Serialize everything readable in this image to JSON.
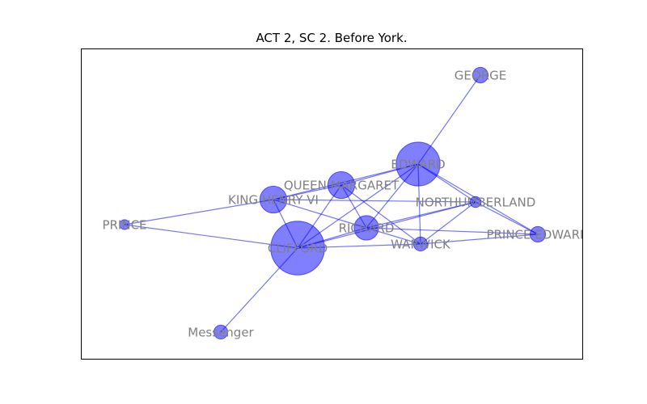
{
  "title": "ACT 2, SC 2. Before York.",
  "colors": {
    "node": "#0000ff",
    "edge": "#0000ff",
    "label": "#808080",
    "frame": "#000000",
    "background": "#ffffff"
  },
  "nodes": [
    {
      "id": "GEORGE",
      "label": "GEORGE",
      "weight": 1
    },
    {
      "id": "EDWARD",
      "label": "EDWARD",
      "weight": 8
    },
    {
      "id": "QUEEN MARGARET",
      "label": "QUEEN MARGARET",
      "weight": 3
    },
    {
      "id": "KING HENRY VI",
      "label": "KING HENRY VI",
      "weight": 3
    },
    {
      "id": "NORTHUMBERLAND",
      "label": "NORTHUMBERLAND",
      "weight": 0.5
    },
    {
      "id": "PRINCE",
      "label": "PRINCE",
      "weight": 0.4
    },
    {
      "id": "RICHARD",
      "label": "RICHARD",
      "weight": 2.5
    },
    {
      "id": "PRINCE EDWARD",
      "label": "PRINCE EDWARD",
      "weight": 1
    },
    {
      "id": "WARWICK",
      "label": "WARWICK",
      "weight": 0.8
    },
    {
      "id": "CLIFFORD",
      "label": "CLIFFORD",
      "weight": 12
    },
    {
      "id": "Messenger",
      "label": "Messenger",
      "weight": 0.8
    }
  ],
  "edges": [
    [
      "GEORGE",
      "EDWARD"
    ],
    [
      "EDWARD",
      "QUEEN MARGARET"
    ],
    [
      "EDWARD",
      "KING HENRY VI"
    ],
    [
      "EDWARD",
      "CLIFFORD"
    ],
    [
      "EDWARD",
      "RICHARD"
    ],
    [
      "EDWARD",
      "WARWICK"
    ],
    [
      "EDWARD",
      "PRINCE EDWARD"
    ],
    [
      "EDWARD",
      "NORTHUMBERLAND"
    ],
    [
      "QUEEN MARGARET",
      "KING HENRY VI"
    ],
    [
      "QUEEN MARGARET",
      "CLIFFORD"
    ],
    [
      "QUEEN MARGARET",
      "RICHARD"
    ],
    [
      "QUEEN MARGARET",
      "WARWICK"
    ],
    [
      "KING HENRY VI",
      "PRINCE"
    ],
    [
      "KING HENRY VI",
      "CLIFFORD"
    ],
    [
      "KING HENRY VI",
      "NORTHUMBERLAND"
    ],
    [
      "KING HENRY VI",
      "RICHARD"
    ],
    [
      "PRINCE",
      "CLIFFORD"
    ],
    [
      "CLIFFORD",
      "RICHARD"
    ],
    [
      "CLIFFORD",
      "WARWICK"
    ],
    [
      "CLIFFORD",
      "NORTHUMBERLAND"
    ],
    [
      "CLIFFORD",
      "Messenger"
    ],
    [
      "RICHARD",
      "WARWICK"
    ],
    [
      "RICHARD",
      "PRINCE EDWARD"
    ],
    [
      "RICHARD",
      "NORTHUMBERLAND"
    ],
    [
      "NORTHUMBERLAND",
      "WARWICK"
    ],
    [
      "NORTHUMBERLAND",
      "PRINCE EDWARD"
    ],
    [
      "WARWICK",
      "PRINCE EDWARD"
    ]
  ]
}
